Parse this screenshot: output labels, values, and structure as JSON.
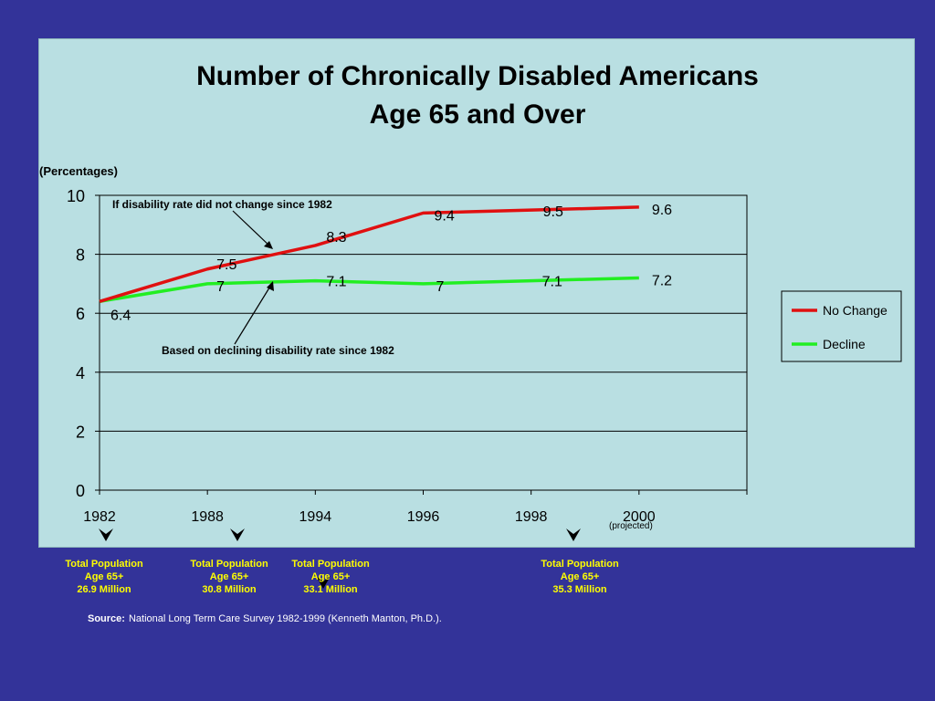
{
  "colors": {
    "background": "#333399",
    "panel": "#b9dfe2",
    "no_change": "#e01010",
    "decline": "#22ee22",
    "population_text": "#ffff00"
  },
  "chart_data": {
    "type": "line",
    "title": "Number of Chronically Disabled Americans",
    "subtitle": "Age 65 and Over",
    "ylabel": "(Percentages)",
    "xlabel": "",
    "categories": [
      "1982",
      "1988",
      "1994",
      "1996",
      "1998",
      "2000"
    ],
    "x_note": "(projected)",
    "ylim": [
      0,
      10
    ],
    "yticks": [
      0,
      2,
      4,
      6,
      8,
      10
    ],
    "grid": true,
    "legend_position": "right",
    "series": [
      {
        "name": "No Change",
        "values": [
          6.4,
          7.5,
          8.3,
          9.4,
          9.5,
          9.6
        ],
        "labels": [
          "6.4",
          "7.5",
          "8.3",
          "9.4",
          "9.5",
          "9.6"
        ]
      },
      {
        "name": "Decline",
        "values": [
          6.4,
          7,
          7.1,
          7,
          7.1,
          7.2
        ],
        "labels": [
          "",
          "7",
          "7.1",
          "7",
          "7.1",
          "7.2"
        ]
      }
    ],
    "annotations": [
      {
        "text": "If disability rate did not change since 1982",
        "points_to": "No Change"
      },
      {
        "text": "Based on declining disability rate since 1982",
        "points_to": "Decline"
      }
    ]
  },
  "population_notes": [
    {
      "line1": "Total Population",
      "line2": "Age 65+",
      "line3": "26.9 Million"
    },
    {
      "line1": "Total Population",
      "line2": "Age 65+",
      "line3": "30.8 Million"
    },
    {
      "line1": "Total Population",
      "line2": "Age 65+",
      "line3": "33.1 Million"
    },
    {
      "line1": "Total Population",
      "line2": "Age 65+",
      "line3": "35.3 Million"
    }
  ],
  "source": {
    "label": "Source:",
    "text": "National Long Term Care Survey 1982-1999 (Kenneth Manton, Ph.D.)."
  }
}
